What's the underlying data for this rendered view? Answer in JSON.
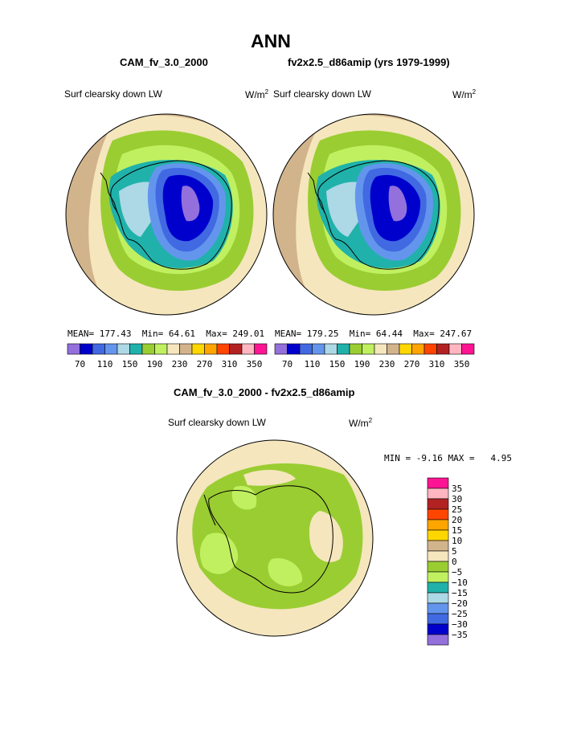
{
  "page_title": "ANN",
  "panels": [
    {
      "case_title": "CAM_fv_3.0_2000",
      "variable": "Surf clearsky down LW",
      "units_base": "W/m",
      "units_exp": "2",
      "stats": {
        "mean_label": "MEAN=",
        "mean": "177.43",
        "min_label": "Min=",
        "min": "64.61",
        "max_label": "Max=",
        "max": "249.01"
      }
    },
    {
      "case_title": "fv2x2.5_d86amip (yrs 1979-1999)",
      "variable": "Surf clearsky down LW",
      "units_base": "W/m",
      "units_exp": "2",
      "stats": {
        "mean_label": "MEAN=",
        "mean": "179.25",
        "min_label": "Min=",
        "min": "64.44",
        "max_label": "Max=",
        "max": "247.67"
      }
    }
  ],
  "horizontal_colorbar": {
    "colors": [
      "#9370DB",
      "#0000CD",
      "#4169E1",
      "#6495ED",
      "#ADD8E6",
      "#20B2AA",
      "#9ACD32",
      "#C0F060",
      "#F5E6BE",
      "#D2B48C",
      "#FFD700",
      "#FFA500",
      "#FF4500",
      "#B22222",
      "#FFB6C1",
      "#FF1493"
    ],
    "tick_labels": [
      "70",
      "110",
      "150",
      "190",
      "230",
      "270",
      "310",
      "350"
    ]
  },
  "difference": {
    "title": "CAM_fv_3.0_2000 - fv2x2.5_d86amip",
    "variable": "Surf clearsky down LW",
    "units_base": "W/m",
    "units_exp": "2",
    "min_label": "MIN =",
    "min": "-9.16",
    "max_label": "MAX =",
    "max": "4.95",
    "colorbar": {
      "colors": [
        "#FF1493",
        "#FFB6C1",
        "#B22222",
        "#FF4500",
        "#FFA500",
        "#FFD700",
        "#D2B48C",
        "#F5E6BE",
        "#9ACD32",
        "#C0F060",
        "#20B2AA",
        "#ADD8E6",
        "#6495ED",
        "#4169E1",
        "#0000CD",
        "#9370DB"
      ],
      "labels": [
        "35",
        "30",
        "25",
        "20",
        "15",
        "10",
        "5",
        "0",
        "−5",
        "−10",
        "−15",
        "−20",
        "−25",
        "−30",
        "−35"
      ]
    }
  },
  "colors": {
    "map_outer_tan": "#D2B48C",
    "map_beige": "#F5E6BE",
    "map_lime": "#C0F060",
    "map_green": "#9ACD32",
    "map_teal": "#20B2AA",
    "map_lightblue": "#ADD8E6",
    "map_cornflower": "#6495ED",
    "map_royal": "#4169E1",
    "map_darkblue": "#0000CD",
    "map_purple": "#9370DB"
  }
}
